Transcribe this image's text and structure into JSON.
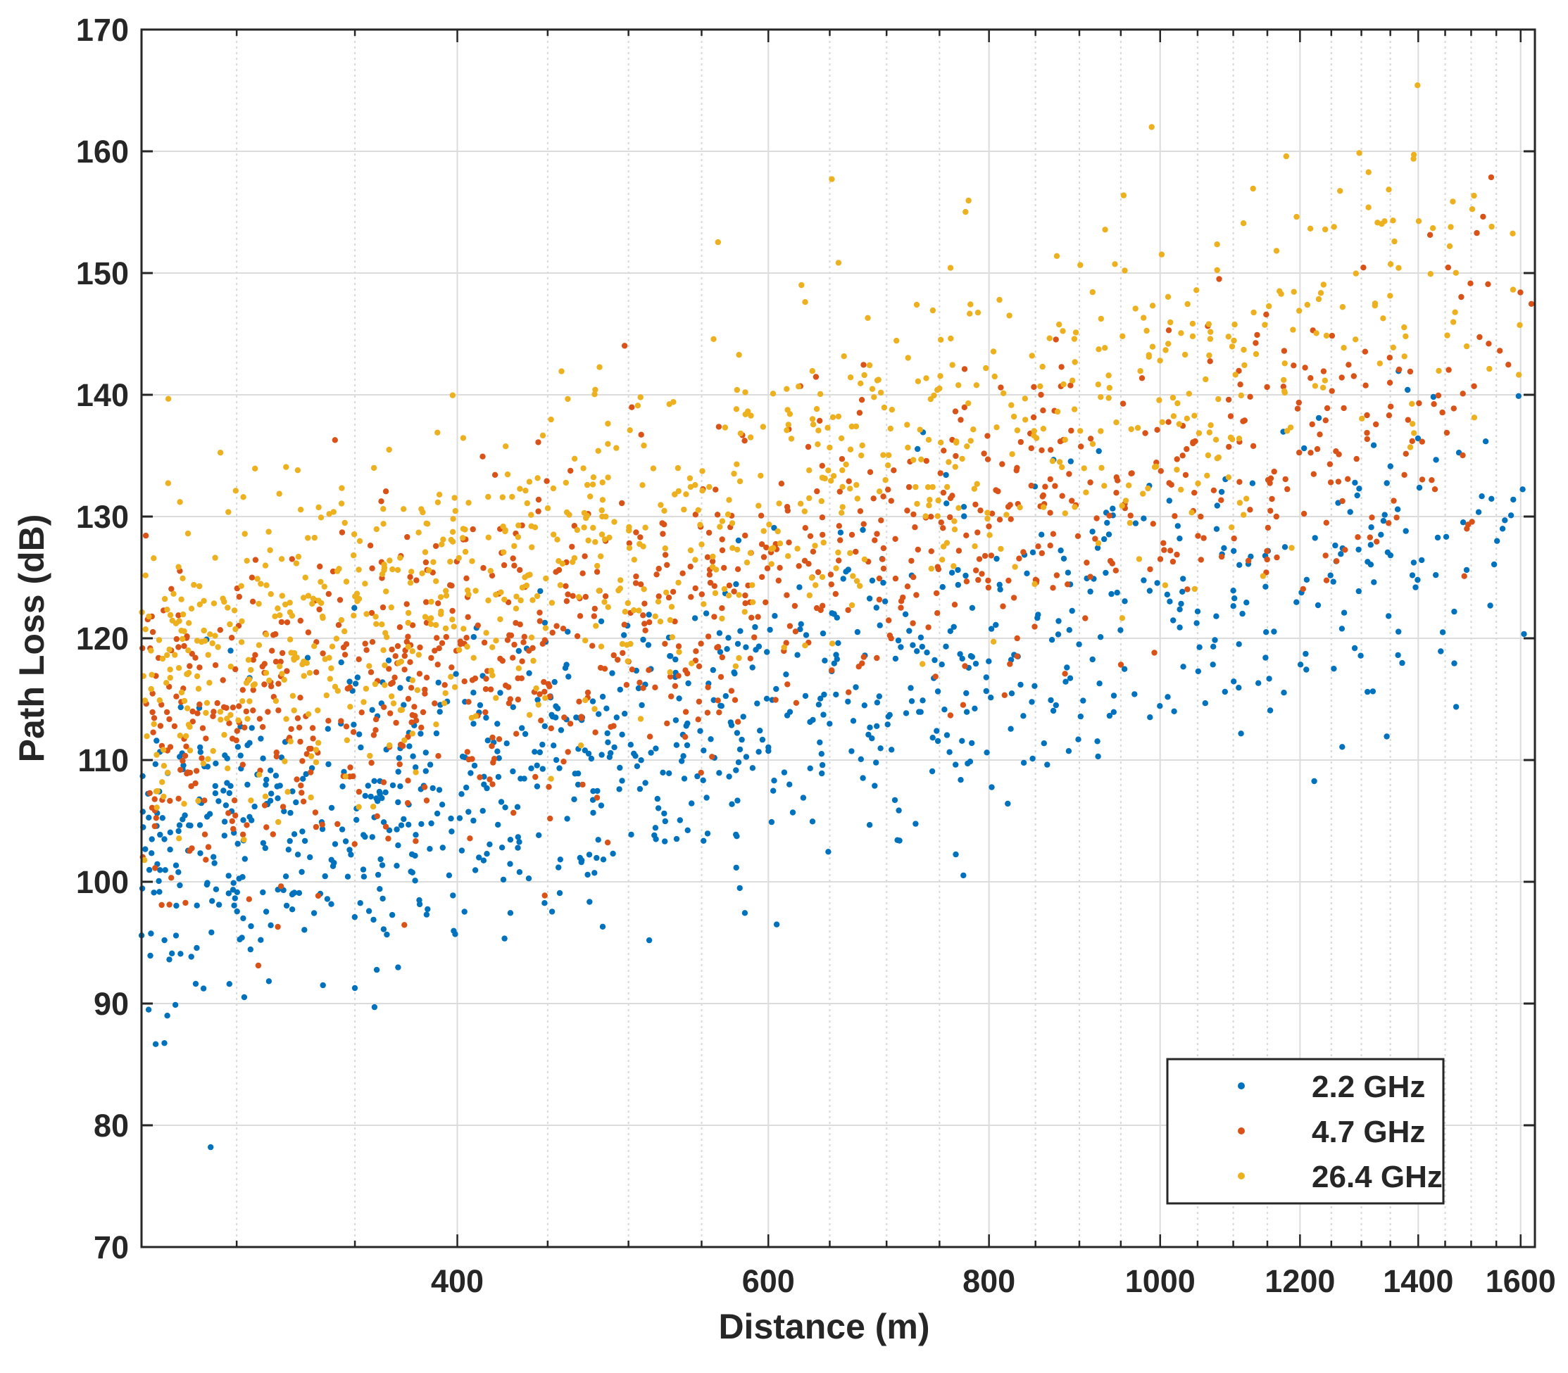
{
  "chart_data": {
    "type": "scatter",
    "title": "",
    "xlabel": "Distance (m)",
    "ylabel": "Path Loss (dB)",
    "x_scale": "log",
    "xlim": [
      265,
      1630
    ],
    "ylim": [
      70,
      170
    ],
    "x_ticks": [
      400,
      600,
      800,
      1000,
      1200,
      1400,
      1600
    ],
    "y_ticks": [
      70,
      80,
      90,
      100,
      110,
      120,
      130,
      140,
      150,
      160,
      170
    ],
    "grid": true,
    "legend_position": "bottom-right",
    "series": [
      {
        "name": "2.2 GHz",
        "color": "#0072bd",
        "trend": {
          "at_x": [
            265,
            1630
          ],
          "y": [
            101,
            129
          ]
        },
        "spread_db": 6.5,
        "min_y": 78.2,
        "count": 950
      },
      {
        "name": "4.7 GHz",
        "color": "#d95319",
        "trend": {
          "at_x": [
            265,
            1630
          ],
          "y": [
            111,
            141
          ]
        },
        "spread_db": 6.5,
        "min_y": 92,
        "count": 950
      },
      {
        "name": "26.4 GHz",
        "color": "#edb120",
        "trend": {
          "at_x": [
            265,
            1630
          ],
          "y": [
            117,
            150
          ]
        },
        "spread_db": 7,
        "min_y": 99,
        "count": 950
      }
    ]
  }
}
